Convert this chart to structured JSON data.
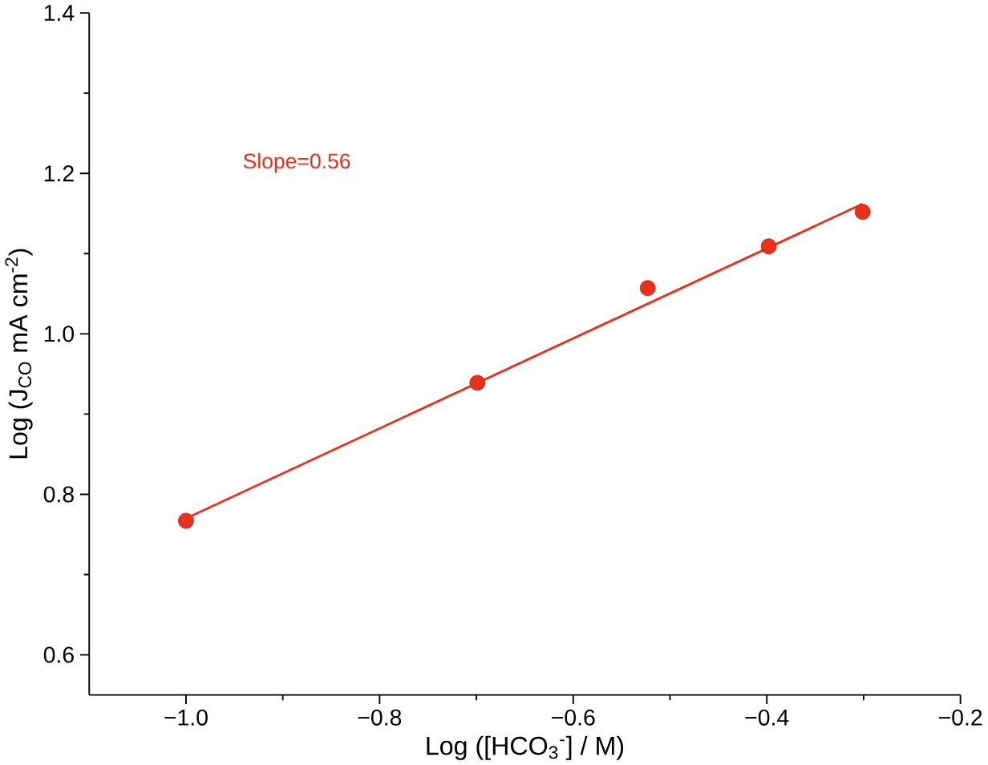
{
  "chart_data": {
    "type": "scatter",
    "xlabel": "Log ([HCO$_{3}$$^{-}$] / M)",
    "ylabel": "Log (J$_{CO}$ mA cm$^{-2}$)",
    "annotations": [
      "Slope=0.56"
    ],
    "series": [
      {
        "color": "#e8301c",
        "x": [
          -1.0,
          -0.699,
          -0.523,
          -0.398,
          -0.301
        ],
        "values": [
          0.767,
          0.939,
          1.057,
          1.109,
          1.152
        ]
      },
      {
        "type": "line",
        "color": "#e8301c",
        "line_style": "solid",
        "x": [
          -1.0,
          -0.301
        ],
        "values": [
          0.77,
          1.162
        ]
      }
    ],
    "xlim": [
      -1.1,
      -0.2
    ],
    "ylim": [
      0.55,
      1.4
    ],
    "xticks": [
      {
        "value": -1.0,
        "label": "−1.0"
      },
      {
        "value": -0.8,
        "label": "−0.8"
      },
      {
        "value": -0.6,
        "label": "−0.6"
      },
      {
        "value": -0.4,
        "label": "−0.4"
      },
      {
        "value": -0.2,
        "label": "−0.2"
      }
    ],
    "yticks": [
      {
        "value": 0.6,
        "label": "0.6"
      },
      {
        "value": 0.8,
        "label": "0.8"
      },
      {
        "value": 1.0,
        "label": "1.0"
      },
      {
        "value": 1.2,
        "label": "1.2"
      },
      {
        "value": 1.4,
        "label": "1.4"
      }
    ],
    "grid": false
  }
}
